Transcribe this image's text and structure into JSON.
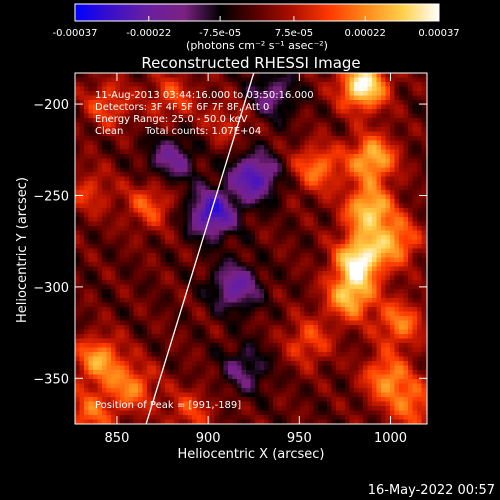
{
  "chart_data": {
    "type": "heatmap",
    "title": "Reconstructed RHESSI Image",
    "xlabel": "Heliocentric X (arcsec)",
    "ylabel": "Heliocentric Y (arcsec)",
    "xlim": [
      827,
      1020
    ],
    "ylim": [
      -375,
      -183
    ],
    "x_ticks": [
      850,
      900,
      950,
      1000
    ],
    "y_ticks": [
      -200,
      -250,
      -300,
      -350
    ],
    "colorbar": {
      "range": [
        -0.00037,
        0.00037
      ],
      "tick_values": [
        -0.00037,
        -0.00022,
        -7.5e-05,
        7.5e-05,
        0.00022,
        0.00037
      ],
      "tick_labels": [
        "-0.00037",
        "-0.00022",
        "-7.5e-05",
        "7.5e-05",
        "0.00022",
        "0.00037"
      ],
      "units_label": "(photons cm⁻² s⁻¹ asec⁻²)",
      "colormap": [
        "#0000ff",
        "#3c0fc8",
        "#6a1fa0",
        "#7a2282",
        "#000000",
        "#5a0000",
        "#b01000",
        "#ff3a00",
        "#ff8a1a",
        "#ffd04a",
        "#ffffff"
      ]
    },
    "annotations": [
      "11-Aug-2013 03:44:16.000 to 03:50:16.000",
      "Detectors: 3F 4F 5F 6F 7F 8F, Att 0",
      "Energy Range: 25.0 - 50.0 keV",
      "Clean",
      "Total counts: 1.07E+04"
    ],
    "peak_label": "Position of Peak = [991,-189]",
    "peak": [
      991,
      -189
    ],
    "limb_line": [
      [
        866,
        -375
      ],
      [
        925,
        -183
      ]
    ],
    "blobs": [
      {
        "x": 985,
        "y": -190,
        "v": 0.00037
      },
      {
        "x": 990,
        "y": -230,
        "v": 0.00028
      },
      {
        "x": 988,
        "y": -258,
        "v": 0.0003
      },
      {
        "x": 983,
        "y": -285,
        "v": 0.00035
      },
      {
        "x": 978,
        "y": -305,
        "v": 0.00028
      },
      {
        "x": 1003,
        "y": -275,
        "v": 0.00022
      },
      {
        "x": 1005,
        "y": -320,
        "v": 0.0002
      },
      {
        "x": 998,
        "y": -350,
        "v": 0.00022
      },
      {
        "x": 1012,
        "y": -365,
        "v": 0.00018
      },
      {
        "x": 960,
        "y": -235,
        "v": 0.0002
      },
      {
        "x": 955,
        "y": -330,
        "v": 0.00015
      },
      {
        "x": 840,
        "y": -340,
        "v": 0.00024
      },
      {
        "x": 858,
        "y": -355,
        "v": 0.0002
      },
      {
        "x": 835,
        "y": -370,
        "v": 0.00018
      },
      {
        "x": 845,
        "y": -200,
        "v": 0.00015
      },
      {
        "x": 880,
        "y": -196,
        "v": 0.00014
      },
      {
        "x": 868,
        "y": -255,
        "v": 0.00016
      },
      {
        "x": 835,
        "y": -248,
        "v": 0.00012
      },
      {
        "x": 910,
        "y": -210,
        "v": 0.0001
      },
      {
        "x": 890,
        "y": -368,
        "v": 0.00013
      },
      {
        "x": 902,
        "y": -260,
        "v": -0.0003
      },
      {
        "x": 925,
        "y": -240,
        "v": -0.00028
      },
      {
        "x": 915,
        "y": -300,
        "v": -0.00022
      },
      {
        "x": 880,
        "y": -230,
        "v": -0.00018
      },
      {
        "x": 935,
        "y": -195,
        "v": -0.00016
      },
      {
        "x": 920,
        "y": -345,
        "v": -0.00014
      }
    ],
    "grid": false
  },
  "footer": {
    "timestamp": "16-May-2022 00:57"
  }
}
